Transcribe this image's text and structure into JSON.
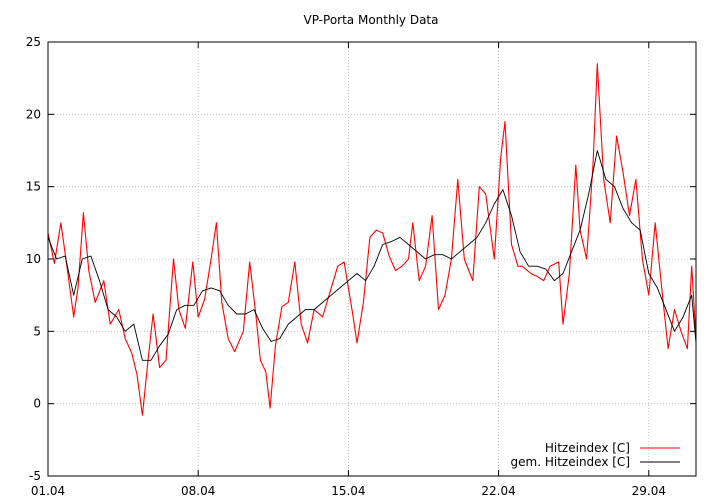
{
  "chart_data": {
    "type": "line",
    "title": "VP-Porta Monthly Data",
    "xlabel": "",
    "ylabel": "",
    "x_unit": "day of April",
    "xlim": [
      1.0,
      31.2
    ],
    "ylim": [
      -5,
      25
    ],
    "x_ticks": [
      {
        "value": 1,
        "label": "01.04"
      },
      {
        "value": 8,
        "label": "08.04"
      },
      {
        "value": 15,
        "label": "15.04"
      },
      {
        "value": 22,
        "label": "22.04"
      },
      {
        "value": 29,
        "label": "29.04"
      }
    ],
    "y_ticks": [
      -5,
      0,
      5,
      10,
      15,
      20,
      25
    ],
    "grid": true,
    "legend_position": "bottom-right",
    "series": [
      {
        "name": "Hitzeindex [C]",
        "color": "#ff0000",
        "points": [
          [
            1.0,
            11.8
          ],
          [
            1.3,
            9.7
          ],
          [
            1.6,
            12.5
          ],
          [
            1.9,
            9.3
          ],
          [
            2.2,
            6.0
          ],
          [
            2.4,
            8.0
          ],
          [
            2.65,
            13.2
          ],
          [
            2.9,
            9.2
          ],
          [
            3.2,
            7.0
          ],
          [
            3.6,
            8.5
          ],
          [
            3.9,
            5.5
          ],
          [
            4.3,
            6.5
          ],
          [
            4.6,
            4.5
          ],
          [
            4.9,
            3.5
          ],
          [
            5.15,
            2.0
          ],
          [
            5.4,
            -0.8
          ],
          [
            5.7,
            3.5
          ],
          [
            5.9,
            6.2
          ],
          [
            6.2,
            2.5
          ],
          [
            6.5,
            3.0
          ],
          [
            6.85,
            10.0
          ],
          [
            7.1,
            6.5
          ],
          [
            7.4,
            5.2
          ],
          [
            7.75,
            9.8
          ],
          [
            8.0,
            6.0
          ],
          [
            8.3,
            7.2
          ],
          [
            8.6,
            10.0
          ],
          [
            8.85,
            12.5
          ],
          [
            9.1,
            7.0
          ],
          [
            9.4,
            4.5
          ],
          [
            9.7,
            3.6
          ],
          [
            10.1,
            5.0
          ],
          [
            10.4,
            9.8
          ],
          [
            10.7,
            6.0
          ],
          [
            10.9,
            3.0
          ],
          [
            11.15,
            2.2
          ],
          [
            11.35,
            -0.3
          ],
          [
            11.6,
            4.0
          ],
          [
            11.9,
            6.7
          ],
          [
            12.2,
            7.0
          ],
          [
            12.5,
            9.8
          ],
          [
            12.8,
            5.5
          ],
          [
            13.1,
            4.2
          ],
          [
            13.4,
            6.5
          ],
          [
            13.8,
            6.0
          ],
          [
            14.1,
            7.5
          ],
          [
            14.5,
            9.5
          ],
          [
            14.8,
            9.8
          ],
          [
            15.2,
            6.2
          ],
          [
            15.4,
            4.2
          ],
          [
            15.7,
            7.0
          ],
          [
            16.0,
            11.5
          ],
          [
            16.3,
            12.0
          ],
          [
            16.6,
            11.8
          ],
          [
            16.9,
            10.2
          ],
          [
            17.2,
            9.2
          ],
          [
            17.5,
            9.5
          ],
          [
            17.8,
            10.0
          ],
          [
            18.0,
            12.5
          ],
          [
            18.3,
            8.5
          ],
          [
            18.6,
            9.5
          ],
          [
            18.9,
            13.0
          ],
          [
            19.2,
            6.5
          ],
          [
            19.5,
            7.5
          ],
          [
            19.8,
            10.0
          ],
          [
            20.1,
            15.5
          ],
          [
            20.4,
            10.0
          ],
          [
            20.8,
            8.5
          ],
          [
            21.1,
            15.0
          ],
          [
            21.4,
            14.5
          ],
          [
            21.8,
            10.0
          ],
          [
            22.1,
            17.0
          ],
          [
            22.3,
            19.5
          ],
          [
            22.6,
            11.0
          ],
          [
            22.9,
            9.5
          ],
          [
            23.1,
            9.5
          ],
          [
            23.5,
            9.0
          ],
          [
            23.8,
            8.8
          ],
          [
            24.1,
            8.5
          ],
          [
            24.4,
            9.5
          ],
          [
            24.8,
            9.8
          ],
          [
            25.0,
            5.5
          ],
          [
            25.3,
            9.0
          ],
          [
            25.6,
            16.5
          ],
          [
            25.8,
            12.0
          ],
          [
            26.1,
            10.0
          ],
          [
            26.4,
            16.5
          ],
          [
            26.6,
            23.5
          ],
          [
            26.9,
            15.5
          ],
          [
            27.2,
            12.5
          ],
          [
            27.5,
            18.5
          ],
          [
            27.8,
            16.0
          ],
          [
            28.1,
            13.0
          ],
          [
            28.4,
            15.5
          ],
          [
            28.7,
            10.0
          ],
          [
            29.0,
            7.5
          ],
          [
            29.3,
            12.5
          ],
          [
            29.6,
            8.0
          ],
          [
            29.9,
            3.8
          ],
          [
            30.2,
            6.5
          ],
          [
            30.5,
            5.0
          ],
          [
            30.8,
            3.8
          ],
          [
            31.0,
            9.5
          ],
          [
            31.2,
            4.5
          ]
        ]
      },
      {
        "name": "gem. Hitzeindex [C]",
        "color": "#000000",
        "points": [
          [
            1.0,
            11.5
          ],
          [
            1.4,
            10.0
          ],
          [
            1.8,
            10.2
          ],
          [
            2.2,
            7.5
          ],
          [
            2.6,
            10.0
          ],
          [
            3.0,
            10.2
          ],
          [
            3.4,
            8.5
          ],
          [
            3.8,
            6.5
          ],
          [
            4.2,
            6.0
          ],
          [
            4.6,
            5.0
          ],
          [
            5.0,
            5.5
          ],
          [
            5.4,
            3.0
          ],
          [
            5.8,
            3.0
          ],
          [
            6.2,
            4.0
          ],
          [
            6.6,
            4.8
          ],
          [
            7.0,
            6.5
          ],
          [
            7.4,
            6.8
          ],
          [
            7.8,
            6.8
          ],
          [
            8.2,
            7.8
          ],
          [
            8.6,
            8.0
          ],
          [
            9.0,
            7.8
          ],
          [
            9.4,
            6.8
          ],
          [
            9.8,
            6.2
          ],
          [
            10.2,
            6.2
          ],
          [
            10.6,
            6.5
          ],
          [
            11.0,
            5.2
          ],
          [
            11.4,
            4.3
          ],
          [
            11.8,
            4.5
          ],
          [
            12.2,
            5.5
          ],
          [
            12.6,
            6.0
          ],
          [
            13.0,
            6.5
          ],
          [
            13.4,
            6.5
          ],
          [
            13.8,
            7.0
          ],
          [
            14.2,
            7.5
          ],
          [
            14.6,
            8.0
          ],
          [
            15.0,
            8.5
          ],
          [
            15.4,
            9.0
          ],
          [
            15.8,
            8.5
          ],
          [
            16.2,
            9.5
          ],
          [
            16.6,
            11.0
          ],
          [
            17.0,
            11.2
          ],
          [
            17.4,
            11.5
          ],
          [
            17.8,
            11.0
          ],
          [
            18.2,
            10.5
          ],
          [
            18.6,
            10.0
          ],
          [
            19.0,
            10.3
          ],
          [
            19.4,
            10.3
          ],
          [
            19.8,
            10.0
          ],
          [
            20.2,
            10.5
          ],
          [
            20.6,
            11.0
          ],
          [
            21.0,
            11.5
          ],
          [
            21.4,
            12.5
          ],
          [
            21.8,
            13.8
          ],
          [
            22.2,
            14.8
          ],
          [
            22.6,
            13.0
          ],
          [
            23.0,
            10.5
          ],
          [
            23.4,
            9.5
          ],
          [
            23.8,
            9.5
          ],
          [
            24.2,
            9.3
          ],
          [
            24.6,
            8.5
          ],
          [
            25.0,
            9.0
          ],
          [
            25.4,
            10.5
          ],
          [
            25.8,
            12.0
          ],
          [
            26.2,
            14.5
          ],
          [
            26.6,
            17.5
          ],
          [
            27.0,
            15.5
          ],
          [
            27.4,
            15.0
          ],
          [
            27.8,
            13.5
          ],
          [
            28.2,
            12.5
          ],
          [
            28.6,
            12.0
          ],
          [
            29.0,
            9.0
          ],
          [
            29.4,
            8.0
          ],
          [
            29.8,
            6.5
          ],
          [
            30.2,
            5.0
          ],
          [
            30.6,
            6.0
          ],
          [
            31.0,
            7.5
          ],
          [
            31.2,
            4.2
          ]
        ]
      }
    ]
  }
}
